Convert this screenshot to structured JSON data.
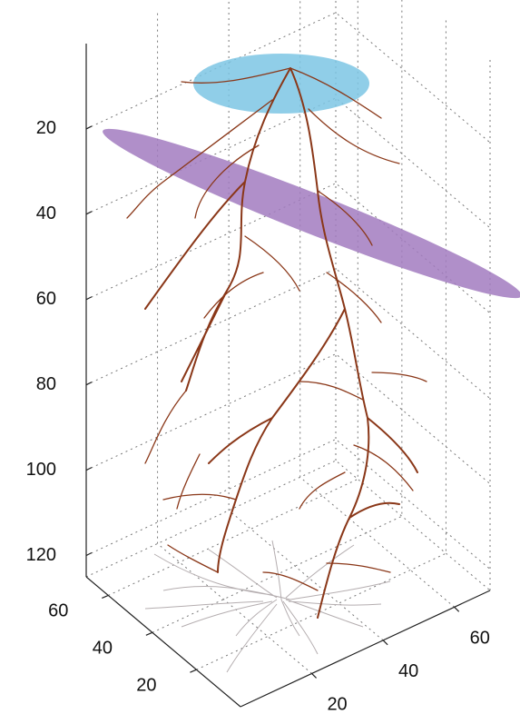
{
  "chart_data": {
    "type": "3d",
    "xlim": [
      0,
      70
    ],
    "ylim": [
      0,
      70
    ],
    "zlim": [
      0,
      125
    ],
    "xticks": [
      20,
      40,
      60
    ],
    "yticks": [
      20,
      40,
      60
    ],
    "zticks": [
      20,
      40,
      60,
      80,
      100,
      120
    ],
    "grid": true
  }
}
